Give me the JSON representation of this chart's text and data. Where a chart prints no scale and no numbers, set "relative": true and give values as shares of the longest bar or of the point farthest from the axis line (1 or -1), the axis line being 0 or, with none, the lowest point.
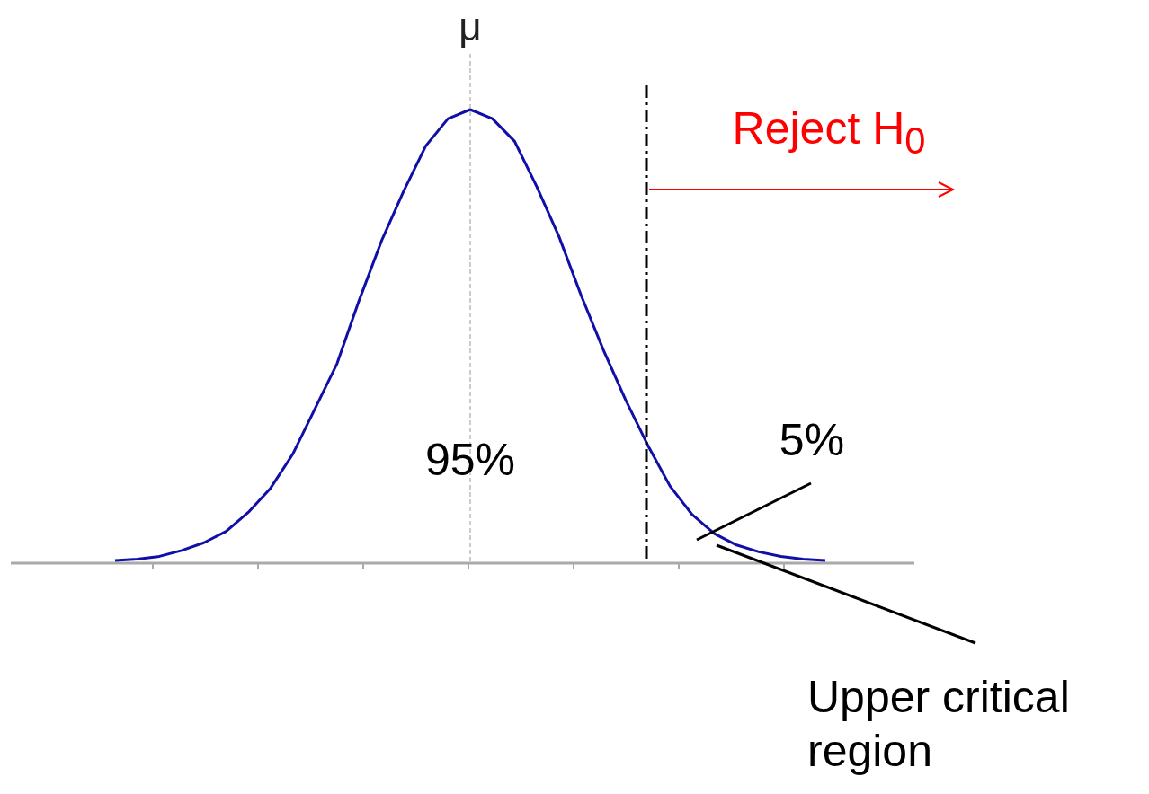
{
  "chart_data": {
    "type": "line",
    "relative": true,
    "marker": "none",
    "line_style": "solid",
    "categories": [
      null,
      null,
      null,
      null,
      null,
      null,
      null,
      null,
      null,
      null,
      null,
      null,
      null,
      null,
      null,
      null,
      null,
      null,
      null,
      null,
      null,
      null,
      null,
      null,
      null,
      null,
      null,
      null,
      null,
      null,
      null,
      null,
      null
    ],
    "series": [
      {
        "color": "#1010a8",
        "values": [
          0.006,
          0.009,
          0.015,
          0.028,
          0.045,
          0.07,
          0.112,
          0.165,
          0.24,
          0.34,
          0.44,
          0.58,
          0.71,
          0.82,
          0.92,
          0.98,
          1,
          0.98,
          0.93,
          0.83,
          0.72,
          0.59,
          0.47,
          0.36,
          0.26,
          0.17,
          0.107,
          0.065,
          0.04,
          0.025,
          0.015,
          0.009,
          0.006
        ]
      }
    ],
    "annotations": [
      "μ",
      "95%",
      "5%",
      "Reject H$_{0}$",
      "Upper critical region"
    ]
  }
}
